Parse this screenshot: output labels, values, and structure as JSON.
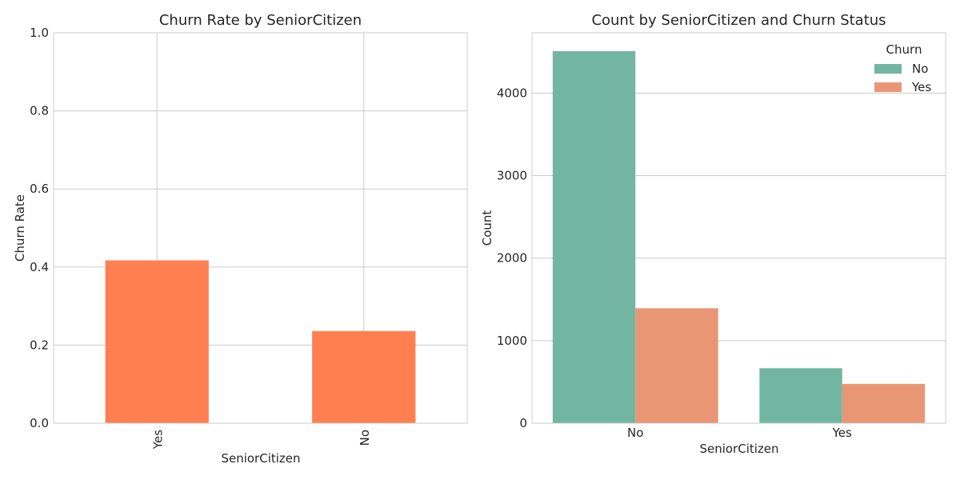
{
  "chart_data": [
    {
      "type": "bar",
      "title": "Churn Rate by SeniorCitizen",
      "xlabel": "SeniorCitizen",
      "ylabel": "Churn Rate",
      "categories": [
        "Yes",
        "No"
      ],
      "values": [
        0.417,
        0.236
      ],
      "ylim": [
        0,
        1.0
      ],
      "yticks": [
        "0.0",
        "0.2",
        "0.4",
        "0.6",
        "0.8",
        "1.0"
      ],
      "color": "#ff7f50",
      "grid": true
    },
    {
      "type": "bar",
      "title": "Count by SeniorCitizen and Churn Status",
      "xlabel": "SeniorCitizen",
      "ylabel": "Count",
      "categories": [
        "No",
        "Yes"
      ],
      "series": [
        {
          "name": "No",
          "values": [
            4508,
            666
          ],
          "color": "#72b6a1"
        },
        {
          "name": "Yes",
          "values": [
            1393,
            476
          ],
          "color": "#e99675"
        }
      ],
      "ylim": [
        0,
        4730
      ],
      "yticks": [
        "0",
        "1000",
        "2000",
        "3000",
        "4000"
      ],
      "legend": {
        "title": "Churn",
        "placement": "top-right"
      },
      "grid": true
    }
  ]
}
